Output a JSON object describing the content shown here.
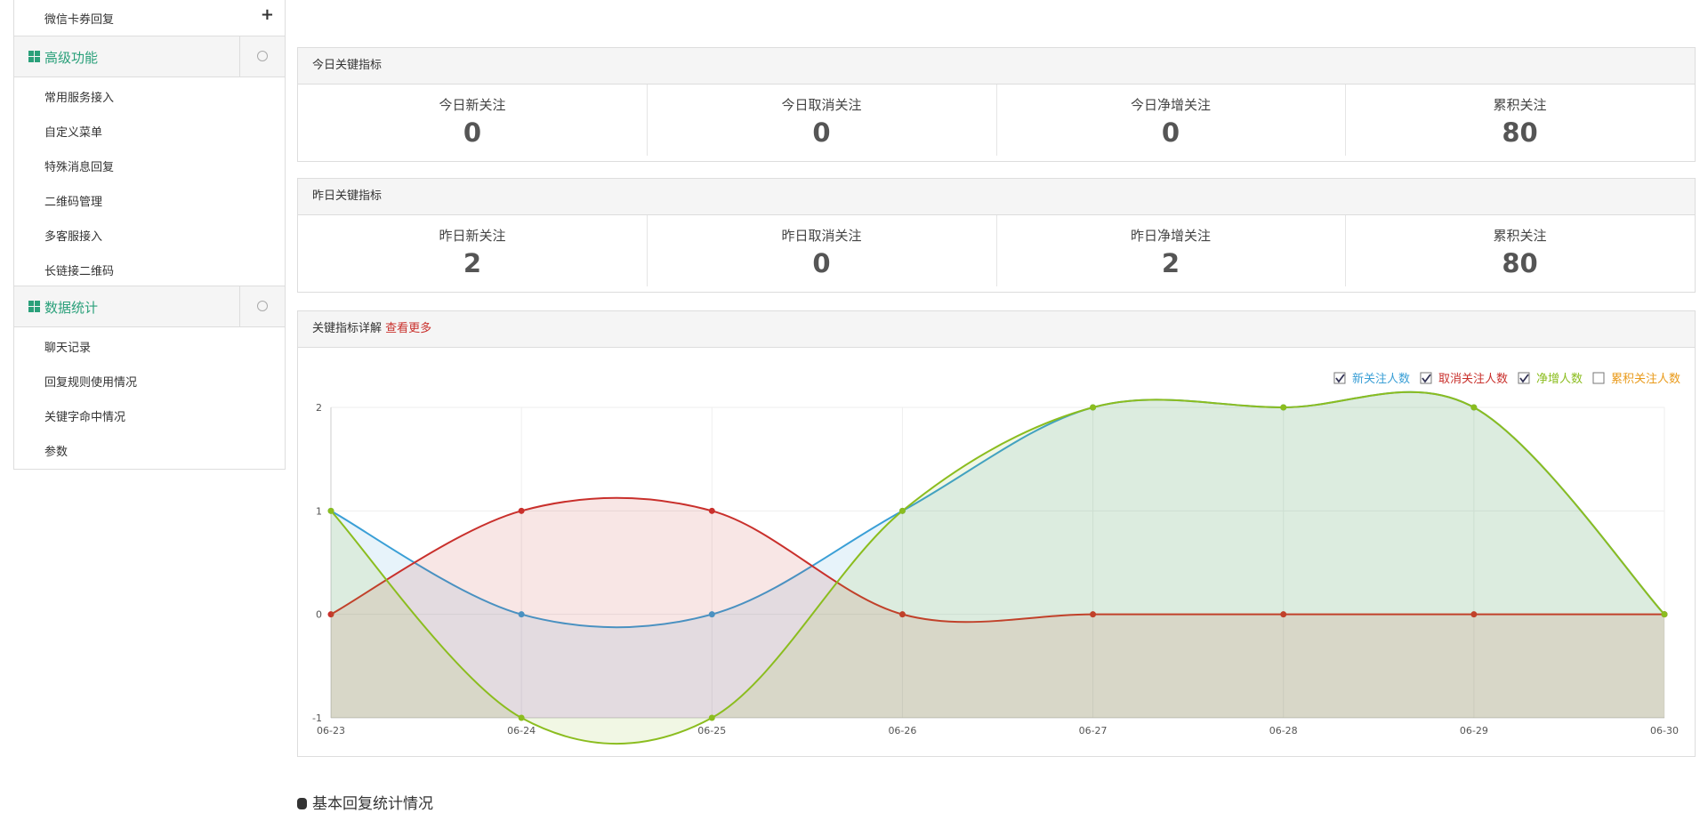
{
  "sidebar": {
    "top_item": "微信卡券回复",
    "sections": [
      {
        "title": "高级功能",
        "items": [
          "常用服务接入",
          "自定义菜单",
          "特殊消息回复",
          "二维码管理",
          "多客服接入",
          "长链接二维码"
        ]
      },
      {
        "title": "数据统计",
        "items": [
          "聊天记录",
          "回复规则使用情况",
          "关键字命中情况",
          "参数"
        ]
      }
    ]
  },
  "panels": [
    {
      "title": "今日关键指标",
      "stats": [
        {
          "label": "今日新关注",
          "value": 0
        },
        {
          "label": "今日取消关注",
          "value": 0
        },
        {
          "label": "今日净增关注",
          "value": 0
        },
        {
          "label": "累积关注",
          "value": 80
        }
      ]
    },
    {
      "title": "昨日关键指标",
      "stats": [
        {
          "label": "昨日新关注",
          "value": 2
        },
        {
          "label": "昨日取消关注",
          "value": 0
        },
        {
          "label": "昨日净增关注",
          "value": 2
        },
        {
          "label": "累积关注",
          "value": 80
        }
      ]
    }
  ],
  "chart_panel": {
    "title": "关键指标详解",
    "link": "查看更多"
  },
  "footer_title": "基本回复统计情况",
  "chart_data": {
    "type": "line",
    "smooth": true,
    "area": true,
    "grid": true,
    "legend": "top-right",
    "categories": [
      "06-23",
      "06-24",
      "06-25",
      "06-26",
      "06-27",
      "06-28",
      "06-29",
      "06-30"
    ],
    "series": [
      {
        "name": "新关注人数",
        "color": "#3a9fd6",
        "visible": true,
        "values": [
          1,
          0,
          0,
          1,
          2,
          2,
          2,
          0
        ]
      },
      {
        "name": "取消关注人数",
        "color": "#c9302c",
        "visible": true,
        "values": [
          0,
          1,
          1,
          0,
          0,
          0,
          0,
          0
        ]
      },
      {
        "name": "净增人数",
        "color": "#8bbd1f",
        "visible": true,
        "values": [
          1,
          -1,
          -1,
          1,
          2,
          2,
          2,
          0
        ]
      },
      {
        "name": "累积关注人数",
        "color": "#e99a1a",
        "visible": false,
        "values": [
          null,
          null,
          null,
          null,
          null,
          null,
          null,
          null
        ]
      }
    ],
    "ylim": [
      -1,
      2
    ],
    "yticks": [
      -1,
      0,
      1,
      2
    ]
  }
}
